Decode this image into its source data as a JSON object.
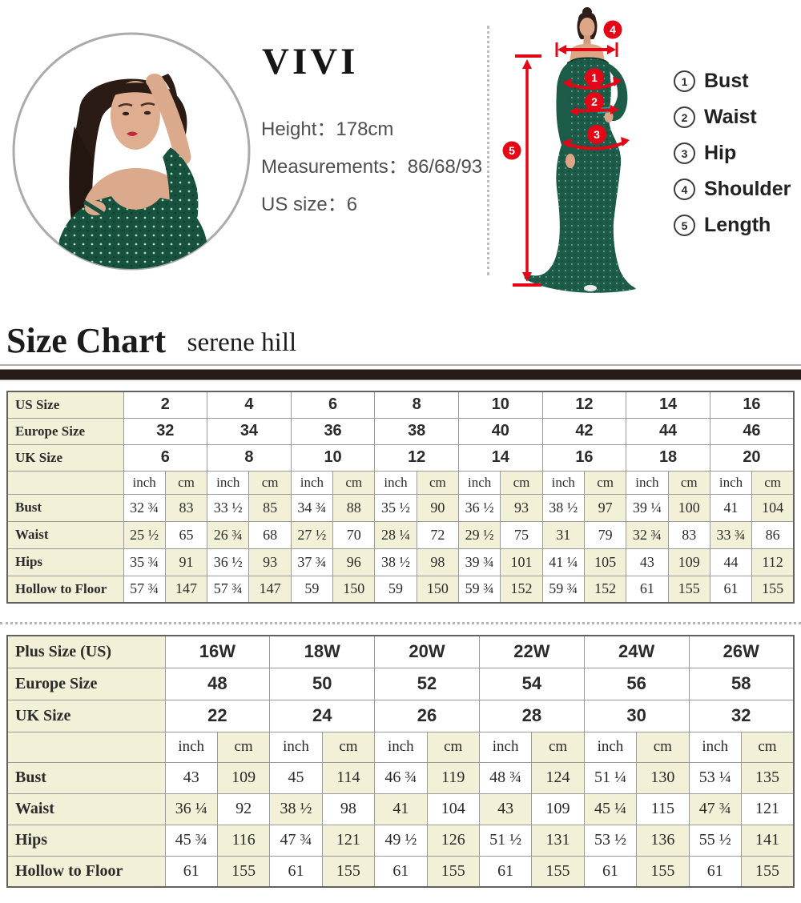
{
  "profile": {
    "brand": "VIVI",
    "height_label": "Height：",
    "height_value": "178cm",
    "measurements_label": "Measurements：",
    "measurements_value": "86/68/93",
    "us_size_label": "US size：",
    "us_size_value": "6"
  },
  "diagram": {
    "markers": [
      "1",
      "2",
      "3",
      "4",
      "5"
    ],
    "legend": [
      {
        "num": "1",
        "label": "Bust"
      },
      {
        "num": "2",
        "label": "Waist"
      },
      {
        "num": "3",
        "label": "Hip"
      },
      {
        "num": "4",
        "label": "Shoulder"
      },
      {
        "num": "5",
        "label": "Length"
      }
    ]
  },
  "heading": {
    "title": "Size Chart",
    "subtitle": "serene hill"
  },
  "size_chart": {
    "unit_headers": [
      "inch",
      "cm"
    ],
    "regular": {
      "name": "regular-size-table",
      "size_rows": [
        {
          "label": "US Size",
          "values": [
            "2",
            "4",
            "6",
            "8",
            "10",
            "12",
            "14",
            "16"
          ]
        },
        {
          "label": "Europe Size",
          "values": [
            "32",
            "34",
            "36",
            "38",
            "40",
            "42",
            "44",
            "46"
          ]
        },
        {
          "label": "UK Size",
          "values": [
            "6",
            "8",
            "10",
            "12",
            "14",
            "16",
            "18",
            "20"
          ]
        }
      ],
      "measure_rows": [
        {
          "label": "Bust",
          "inch": [
            "32 ¾",
            "33 ½",
            "34 ¾",
            "35 ½",
            "36 ½",
            "38 ½",
            "39 ¼",
            "41"
          ],
          "cm": [
            "83",
            "85",
            "88",
            "90",
            "93",
            "97",
            "100",
            "104"
          ]
        },
        {
          "label": "Waist",
          "inch": [
            "25 ½",
            "26 ¾",
            "27 ½",
            "28 ¼",
            "29 ½",
            "31",
            "32 ¾",
            "33 ¾"
          ],
          "cm": [
            "65",
            "68",
            "70",
            "72",
            "75",
            "79",
            "83",
            "86"
          ]
        },
        {
          "label": "Hips",
          "inch": [
            "35 ¾",
            "36 ½",
            "37 ¾",
            "38 ½",
            "39 ¾",
            "41 ¼",
            "43",
            "44"
          ],
          "cm": [
            "91",
            "93",
            "96",
            "98",
            "101",
            "105",
            "109",
            "112"
          ]
        },
        {
          "label": "Hollow to Floor",
          "inch": [
            "57 ¾",
            "57 ¾",
            "59",
            "59",
            "59 ¾",
            "59 ¾",
            "61",
            "61"
          ],
          "cm": [
            "147",
            "147",
            "150",
            "150",
            "152",
            "152",
            "155",
            "155"
          ]
        }
      ]
    },
    "plus": {
      "name": "plus-size-table",
      "size_rows": [
        {
          "label": "Plus Size (US)",
          "values": [
            "16W",
            "18W",
            "20W",
            "22W",
            "24W",
            "26W"
          ]
        },
        {
          "label": "Europe Size",
          "values": [
            "48",
            "50",
            "52",
            "54",
            "56",
            "58"
          ]
        },
        {
          "label": "UK Size",
          "values": [
            "22",
            "24",
            "26",
            "28",
            "30",
            "32"
          ]
        }
      ],
      "measure_rows": [
        {
          "label": "Bust",
          "inch": [
            "43",
            "45",
            "46 ¾",
            "48 ¾",
            "51 ¼",
            "53 ¼"
          ],
          "cm": [
            "109",
            "114",
            "119",
            "124",
            "130",
            "135"
          ]
        },
        {
          "label": "Waist",
          "inch": [
            "36 ¼",
            "38 ½",
            "41",
            "43",
            "45 ¼",
            "47 ¾"
          ],
          "cm": [
            "92",
            "98",
            "104",
            "109",
            "115",
            "121"
          ]
        },
        {
          "label": "Hips",
          "inch": [
            "45 ¾",
            "47 ¾",
            "49 ½",
            "51 ½",
            "53 ½",
            "55 ½"
          ],
          "cm": [
            "116",
            "121",
            "126",
            "131",
            "136",
            "141"
          ]
        },
        {
          "label": "Hollow to Floor",
          "inch": [
            "61",
            "61",
            "61",
            "61",
            "61",
            "61"
          ],
          "cm": [
            "155",
            "155",
            "155",
            "155",
            "155",
            "155"
          ]
        }
      ]
    }
  },
  "colors": {
    "accent_red": "#e30617",
    "dress_green": "#1d5c49",
    "table_row_tint": "#f3f0d8",
    "divider_brown": "#281c17"
  }
}
